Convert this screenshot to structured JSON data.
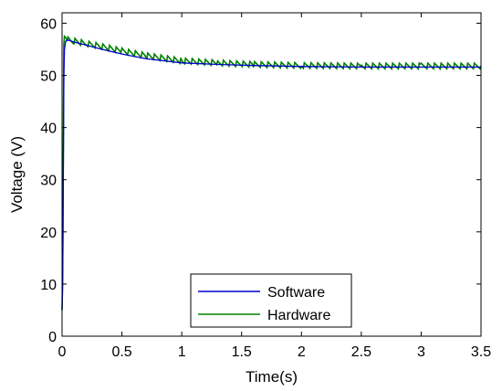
{
  "chart_data": {
    "type": "line",
    "title": "",
    "xlabel": "Time(s)",
    "ylabel": "Voltage (V)",
    "xlim": [
      0,
      3.5
    ],
    "ylim": [
      0,
      62
    ],
    "xticks": [
      0,
      0.5,
      1,
      1.5,
      2,
      2.5,
      3,
      3.5
    ],
    "xtick_labels": [
      "0",
      "0.5",
      "1",
      "1.5",
      "2",
      "2.5",
      "3",
      "3.5"
    ],
    "yticks": [
      0,
      10,
      20,
      30,
      40,
      50,
      60
    ],
    "ytick_labels": [
      "0",
      "10",
      "20",
      "30",
      "40",
      "50",
      "60"
    ],
    "grid": false,
    "legend_position": "bottom-center",
    "series": [
      {
        "name": "Software",
        "color": "#0000cc",
        "x": [
          0,
          0.005,
          0.01,
          0.015,
          0.02,
          0.03,
          0.04,
          0.06,
          0.1,
          0.2,
          0.3,
          0.5,
          0.7,
          1.0,
          1.3,
          1.6,
          2.0,
          2.5,
          3.0,
          3.5
        ],
        "y": [
          5,
          10,
          28,
          50,
          55,
          56.5,
          56.8,
          56.7,
          56.4,
          55.8,
          55.2,
          54.1,
          53.2,
          52.4,
          52.1,
          51.9,
          51.7,
          51.6,
          51.6,
          51.6
        ]
      },
      {
        "name": "Hardware",
        "color": "#008000",
        "x": [
          0,
          0.005,
          0.01,
          0.015,
          0.02,
          0.03,
          0.05,
          0.1,
          0.2,
          0.3,
          0.5,
          0.7,
          1.0,
          1.3,
          1.6,
          2.0,
          2.5,
          3.0,
          3.5
        ],
        "y": [
          5,
          12,
          35,
          56,
          57.5,
          57.3,
          57.0,
          56.6,
          56.1,
          55.7,
          54.7,
          53.8,
          52.8,
          52.4,
          52.1,
          51.9,
          51.8,
          51.8,
          51.8
        ]
      }
    ]
  }
}
